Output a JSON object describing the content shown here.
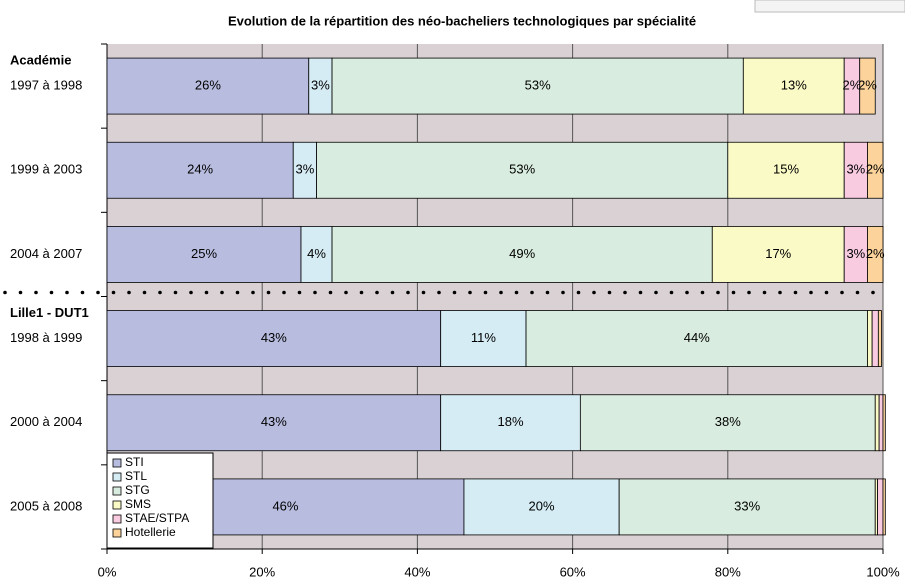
{
  "chart_data": {
    "type": "stacked-barh",
    "title": "Evolution de la répartition des néo-bacheliers technologiques par spécialité",
    "groups": [
      {
        "label": "Académie",
        "start": 0
      },
      {
        "label": "Lille1 - DUT1",
        "start": 3
      }
    ],
    "categories": [
      "1997 à 1998",
      "1999 à 2003",
      "2004 à 2007",
      "1998 à 1999",
      "2000 à 2004",
      "2005 à 2008"
    ],
    "series": [
      {
        "name": "STI",
        "color": "#b8bde0",
        "values": [
          26,
          24,
          25,
          43,
          43,
          46
        ],
        "value_labels": [
          "26%",
          "24%",
          "25%",
          "43%",
          "43%",
          "46%"
        ]
      },
      {
        "name": "STL",
        "color": "#d5ecf4",
        "values": [
          3,
          3,
          4,
          11,
          18,
          20
        ],
        "value_labels": [
          "3%",
          "3%",
          "4%",
          "11%",
          "18%",
          "20%"
        ]
      },
      {
        "name": "STG",
        "color": "#d8ecdf",
        "values": [
          53,
          53,
          49,
          44,
          38,
          33
        ],
        "value_labels": [
          "53%",
          "53%",
          "49%",
          "44%",
          "38%",
          "33%"
        ]
      },
      {
        "name": "SMS",
        "color": "#fafac6",
        "values": [
          13,
          15,
          17,
          0.6,
          0.5,
          0.3
        ],
        "value_labels": [
          "13%",
          "15%",
          "17%",
          null,
          null,
          null
        ]
      },
      {
        "name": "STAE/STPA",
        "color": "#f8cbe0",
        "values": [
          2,
          3,
          3,
          0.8,
          0.5,
          0.7
        ],
        "value_labels": [
          "2%",
          "3%",
          "3%",
          null,
          null,
          null
        ]
      },
      {
        "name": "Hotellerie",
        "color": "#fbd39b",
        "values": [
          2,
          2,
          2,
          0.4,
          0.3,
          0.3
        ],
        "value_labels": [
          "2%",
          "2%",
          "2%",
          null,
          null,
          null
        ]
      }
    ],
    "xlim": [
      0,
      100
    ],
    "xticks": [
      {
        "value": 0,
        "label": "0%"
      },
      {
        "value": 20,
        "label": "20%"
      },
      {
        "value": 40,
        "label": "40%"
      },
      {
        "value": 60,
        "label": "60%"
      },
      {
        "value": 80,
        "label": "80%"
      },
      {
        "value": 100,
        "label": "100%"
      }
    ],
    "grid": true,
    "legend": "lower left"
  }
}
